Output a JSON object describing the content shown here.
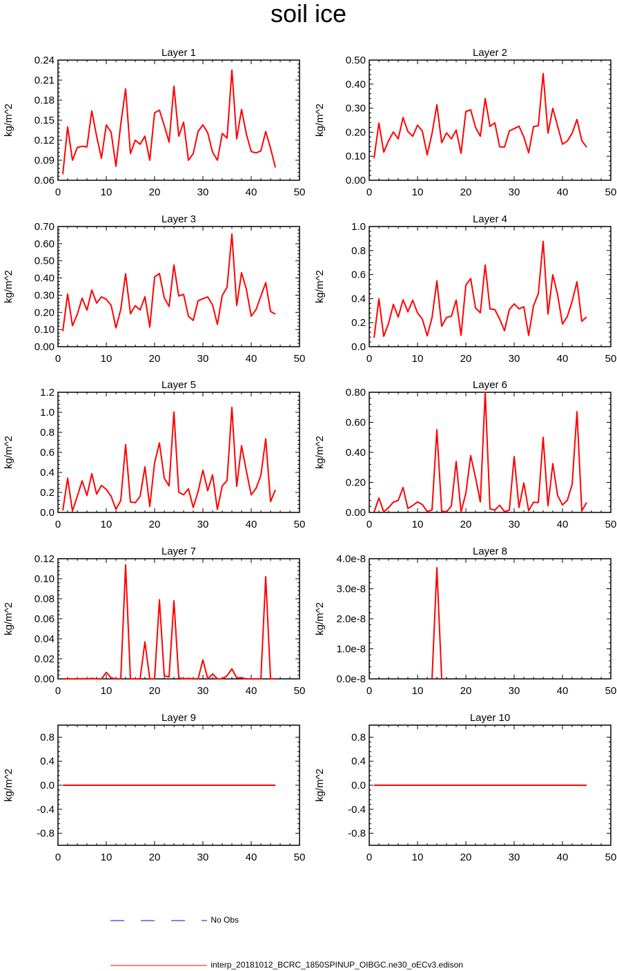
{
  "title": "soil ice",
  "chart_data": [
    {
      "type": "line",
      "title": "Layer 1",
      "ylabel": "kg/m^2",
      "xlim": [
        0,
        50
      ],
      "ylim": [
        0.06,
        0.24
      ],
      "xticks": [
        0,
        10,
        20,
        30,
        40,
        50
      ],
      "yticks": [
        0.06,
        0.09,
        0.12,
        0.15,
        0.18,
        0.21,
        0.24
      ],
      "ytick_labels": [
        "0.06",
        "0.09",
        "0.12",
        "0.15",
        "0.18",
        "0.21",
        "0.24"
      ],
      "x": [
        1,
        2,
        3,
        4,
        5,
        6,
        7,
        8,
        9,
        10,
        11,
        12,
        13,
        14,
        15,
        16,
        17,
        18,
        19,
        20,
        21,
        22,
        23,
        24,
        25,
        26,
        27,
        28,
        29,
        30,
        31,
        32,
        33,
        34,
        35,
        36,
        37,
        38,
        39,
        40,
        41,
        42,
        43,
        44,
        45
      ],
      "series": [
        {
          "name": "interp_20181012_BCRC_1850SPINUP_OIBGC.ne30_oECv3.edison",
          "color": "#ff0000",
          "values": [
            0.069,
            0.14,
            0.09,
            0.109,
            0.111,
            0.11,
            0.164,
            0.126,
            0.093,
            0.143,
            0.132,
            0.081,
            0.144,
            0.197,
            0.1,
            0.12,
            0.114,
            0.126,
            0.09,
            0.161,
            0.165,
            0.142,
            0.117,
            0.201,
            0.126,
            0.147,
            0.09,
            0.1,
            0.133,
            0.143,
            0.131,
            0.102,
            0.09,
            0.13,
            0.123,
            0.225,
            0.122,
            0.166,
            0.129,
            0.103,
            0.101,
            0.104,
            0.133,
            0.108,
            0.079
          ]
        }
      ]
    },
    {
      "type": "line",
      "title": "Layer 2",
      "ylabel": "kg/m^2",
      "xlim": [
        0,
        50
      ],
      "ylim": [
        0,
        0.5
      ],
      "xticks": [
        0,
        10,
        20,
        30,
        40,
        50
      ],
      "yticks": [
        0,
        0.1,
        0.2,
        0.3,
        0.4,
        0.5
      ],
      "ytick_labels": [
        "0.00",
        "0.10",
        "0.20",
        "0.30",
        "0.40",
        "0.50"
      ],
      "x": [
        1,
        2,
        3,
        4,
        5,
        6,
        7,
        8,
        9,
        10,
        11,
        12,
        13,
        14,
        15,
        16,
        17,
        18,
        19,
        20,
        21,
        22,
        23,
        24,
        25,
        26,
        27,
        28,
        29,
        30,
        31,
        32,
        33,
        34,
        35,
        36,
        37,
        38,
        39,
        40,
        41,
        42,
        43,
        44,
        45
      ],
      "series": [
        {
          "name": "interp_20181012_BCRC_1850SPINUP_OIBGC.ne30_oECv3.edison",
          "color": "#ff0000",
          "values": [
            0.092,
            0.238,
            0.117,
            0.164,
            0.201,
            0.172,
            0.261,
            0.203,
            0.183,
            0.229,
            0.204,
            0.106,
            0.195,
            0.314,
            0.156,
            0.197,
            0.172,
            0.209,
            0.112,
            0.286,
            0.293,
            0.22,
            0.183,
            0.34,
            0.224,
            0.239,
            0.139,
            0.138,
            0.205,
            0.215,
            0.225,
            0.18,
            0.114,
            0.223,
            0.227,
            0.444,
            0.196,
            0.299,
            0.225,
            0.15,
            0.163,
            0.196,
            0.253,
            0.165,
            0.137
          ]
        }
      ]
    },
    {
      "type": "line",
      "title": "Layer 3",
      "ylabel": "kg/m^2",
      "xlim": [
        0,
        50
      ],
      "ylim": [
        0,
        0.7
      ],
      "xticks": [
        0,
        10,
        20,
        30,
        40,
        50
      ],
      "yticks": [
        0,
        0.1,
        0.2,
        0.3,
        0.4,
        0.5,
        0.6,
        0.7
      ],
      "ytick_labels": [
        "0.00",
        "0.10",
        "0.20",
        "0.30",
        "0.40",
        "0.50",
        "0.60",
        "0.70"
      ],
      "x": [
        1,
        2,
        3,
        4,
        5,
        6,
        7,
        8,
        9,
        10,
        11,
        12,
        13,
        14,
        15,
        16,
        17,
        18,
        19,
        20,
        21,
        22,
        23,
        24,
        25,
        26,
        27,
        28,
        29,
        30,
        31,
        32,
        33,
        34,
        35,
        36,
        37,
        38,
        39,
        40,
        41,
        42,
        43,
        44,
        45
      ],
      "series": [
        {
          "name": "interp_20181012_BCRC_1850SPINUP_OIBGC.ne30_oECv3.edison",
          "color": "#ff0000",
          "values": [
            0.09,
            0.307,
            0.122,
            0.189,
            0.283,
            0.213,
            0.33,
            0.254,
            0.29,
            0.276,
            0.241,
            0.11,
            0.217,
            0.425,
            0.192,
            0.239,
            0.214,
            0.291,
            0.114,
            0.406,
            0.426,
            0.285,
            0.234,
            0.476,
            0.295,
            0.305,
            0.178,
            0.153,
            0.268,
            0.28,
            0.29,
            0.243,
            0.13,
            0.298,
            0.345,
            0.656,
            0.24,
            0.431,
            0.334,
            0.178,
            0.216,
            0.295,
            0.373,
            0.205,
            0.19
          ]
        }
      ]
    },
    {
      "type": "line",
      "title": "Layer 4",
      "ylabel": "kg/m^2",
      "xlim": [
        0,
        50
      ],
      "ylim": [
        0,
        1.0
      ],
      "xticks": [
        0,
        10,
        20,
        30,
        40,
        50
      ],
      "yticks": [
        0,
        0.2,
        0.4,
        0.6,
        0.8,
        1.0
      ],
      "ytick_labels": [
        "0.0",
        "0.2",
        "0.4",
        "0.6",
        "0.8",
        "1.0"
      ],
      "x": [
        1,
        2,
        3,
        4,
        5,
        6,
        7,
        8,
        9,
        10,
        11,
        12,
        13,
        14,
        15,
        16,
        17,
        18,
        19,
        20,
        21,
        22,
        23,
        24,
        25,
        26,
        27,
        28,
        29,
        30,
        31,
        32,
        33,
        34,
        35,
        36,
        37,
        38,
        39,
        40,
        41,
        42,
        43,
        44,
        45
      ],
      "series": [
        {
          "name": "interp_20181012_BCRC_1850SPINUP_OIBGC.ne30_oECv3.edison",
          "color": "#ff0000",
          "values": [
            0.074,
            0.399,
            0.086,
            0.194,
            0.352,
            0.246,
            0.39,
            0.29,
            0.387,
            0.281,
            0.229,
            0.09,
            0.242,
            0.547,
            0.17,
            0.243,
            0.254,
            0.388,
            0.094,
            0.512,
            0.567,
            0.322,
            0.282,
            0.68,
            0.314,
            0.309,
            0.23,
            0.133,
            0.309,
            0.356,
            0.315,
            0.332,
            0.094,
            0.34,
            0.441,
            0.877,
            0.272,
            0.598,
            0.431,
            0.188,
            0.25,
            0.378,
            0.54,
            0.211,
            0.248
          ]
        }
      ]
    },
    {
      "type": "line",
      "title": "Layer 5",
      "ylabel": "kg/m^2",
      "xlim": [
        0,
        50
      ],
      "ylim": [
        0,
        1.2
      ],
      "xticks": [
        0,
        10,
        20,
        30,
        40,
        50
      ],
      "yticks": [
        0,
        0.2,
        0.4,
        0.6,
        0.8,
        1.0,
        1.2
      ],
      "ytick_labels": [
        "0.0",
        "0.2",
        "0.4",
        "0.6",
        "0.8",
        "1.0",
        "1.2"
      ],
      "x": [
        1,
        2,
        3,
        4,
        5,
        6,
        7,
        8,
        9,
        10,
        11,
        12,
        13,
        14,
        15,
        16,
        17,
        18,
        19,
        20,
        21,
        22,
        23,
        24,
        25,
        26,
        27,
        28,
        29,
        30,
        31,
        32,
        33,
        34,
        35,
        36,
        37,
        38,
        39,
        40,
        41,
        42,
        43,
        44,
        45
      ],
      "series": [
        {
          "name": "interp_20181012_BCRC_1850SPINUP_OIBGC.ne30_oECv3.edison",
          "color": "#ff0000",
          "values": [
            0.019,
            0.342,
            0.014,
            0.161,
            0.316,
            0.169,
            0.386,
            0.183,
            0.27,
            0.23,
            0.162,
            0.03,
            0.119,
            0.677,
            0.104,
            0.097,
            0.161,
            0.456,
            0.059,
            0.495,
            0.694,
            0.342,
            0.265,
            1.003,
            0.203,
            0.176,
            0.237,
            0.05,
            0.208,
            0.422,
            0.217,
            0.375,
            0.029,
            0.265,
            0.318,
            1.049,
            0.26,
            0.666,
            0.413,
            0.175,
            0.241,
            0.371,
            0.735,
            0.108,
            0.225
          ]
        }
      ]
    },
    {
      "type": "line",
      "title": "Layer 6",
      "ylabel": "kg/m^2",
      "xlim": [
        0,
        50
      ],
      "ylim": [
        0,
        0.8
      ],
      "xticks": [
        0,
        10,
        20,
        30,
        40,
        50
      ],
      "yticks": [
        0,
        0.2,
        0.4,
        0.6,
        0.8
      ],
      "ytick_labels": [
        "0.00",
        "0.20",
        "0.40",
        "0.60",
        "0.80"
      ],
      "x": [
        1,
        2,
        3,
        4,
        5,
        6,
        7,
        8,
        9,
        10,
        11,
        12,
        13,
        14,
        15,
        16,
        17,
        18,
        19,
        20,
        21,
        22,
        23,
        24,
        25,
        26,
        27,
        28,
        29,
        30,
        31,
        32,
        33,
        34,
        35,
        36,
        37,
        38,
        39,
        40,
        41,
        42,
        43,
        44,
        45
      ],
      "series": [
        {
          "name": "interp_20181012_BCRC_1850SPINUP_OIBGC.ne30_oECv3.edison",
          "color": "#ff0000",
          "values": [
            0.002,
            0.096,
            0.004,
            0.032,
            0.069,
            0.08,
            0.166,
            0.026,
            0.046,
            0.07,
            0.052,
            0.006,
            0.016,
            0.55,
            0.008,
            0.004,
            0.043,
            0.339,
            0.003,
            0.127,
            0.378,
            0.233,
            0.07,
            0.8,
            0.024,
            0.016,
            0.048,
            0.005,
            0.015,
            0.372,
            0.033,
            0.196,
            0.012,
            0.068,
            0.066,
            0.5,
            0.044,
            0.325,
            0.112,
            0.05,
            0.081,
            0.186,
            0.67,
            0.01,
            0.066
          ]
        }
      ]
    },
    {
      "type": "line",
      "title": "Layer 7",
      "ylabel": "kg/m^2",
      "xlim": [
        0,
        50
      ],
      "ylim": [
        0,
        0.12
      ],
      "xticks": [
        0,
        10,
        20,
        30,
        40,
        50
      ],
      "yticks": [
        0,
        0.02,
        0.04,
        0.06,
        0.08,
        0.1,
        0.12
      ],
      "ytick_labels": [
        "0.00",
        "0.02",
        "0.04",
        "0.06",
        "0.08",
        "0.10",
        "0.12"
      ],
      "x": [
        1,
        2,
        3,
        4,
        5,
        6,
        7,
        8,
        9,
        10,
        11,
        12,
        13,
        14,
        15,
        16,
        17,
        18,
        19,
        20,
        21,
        22,
        23,
        24,
        25,
        26,
        27,
        28,
        29,
        30,
        31,
        32,
        33,
        34,
        35,
        36,
        37,
        38,
        39,
        40,
        41,
        42,
        43,
        44,
        45
      ],
      "series": [
        {
          "name": "interp_20181012_BCRC_1850SPINUP_OIBGC.ne30_oECv3.edison",
          "color": "#ff0000",
          "values": [
            0.0,
            0.0,
            0.0,
            0.0,
            0.0003,
            0.0,
            0.0005,
            0.0,
            0.0,
            0.0065,
            0.001,
            0.0,
            0.0,
            0.114,
            0.0,
            0.0,
            0.0,
            0.037,
            0.0,
            0.0,
            0.079,
            0.003,
            0.002,
            0.078,
            0.001,
            0.0,
            0.0005,
            0.0,
            0.0,
            0.019,
            0.0,
            0.005,
            0.0,
            0.0,
            0.003,
            0.01,
            0.001,
            0.001,
            0.0,
            0.0,
            0.0,
            0.0,
            0.102,
            0.0,
            0.0
          ]
        }
      ]
    },
    {
      "type": "line",
      "title": "Layer 8",
      "ylabel": "kg/m^2",
      "xlim": [
        0,
        50
      ],
      "ylim": [
        0,
        4e-08
      ],
      "xticks": [
        0,
        10,
        20,
        30,
        40,
        50
      ],
      "yticks": [
        0,
        1e-08,
        2e-08,
        3e-08,
        4e-08
      ],
      "ytick_labels": [
        "0.0e-8",
        "1.0e-8",
        "2.0e-8",
        "3.0e-8",
        "4.0e-8"
      ],
      "x": [
        13,
        14,
        15
      ],
      "series": [
        {
          "name": "interp_20181012_BCRC_1850SPINUP_OIBGC.ne30_oECv3.edison",
          "color": "#ff0000",
          "values": [
            0,
            3.7e-08,
            0
          ]
        }
      ]
    },
    {
      "type": "line",
      "title": "Layer 9",
      "ylabel": "kg/m^2",
      "xlim": [
        0,
        50
      ],
      "ylim": [
        -1.0,
        1.0
      ],
      "xticks": [
        0,
        10,
        20,
        30,
        40,
        50
      ],
      "yticks": [
        -0.8,
        -0.4,
        0.0,
        0.4,
        0.8
      ],
      "ytick_labels": [
        "-0.8",
        "-0.4",
        "0.0",
        "0.4",
        "0.8"
      ],
      "x": [
        1,
        45
      ],
      "series": [
        {
          "name": "interp_20181012_BCRC_1850SPINUP_OIBGC.ne30_oECv3.edison",
          "color": "#ff0000",
          "values": [
            0,
            0
          ]
        }
      ]
    },
    {
      "type": "line",
      "title": "Layer 10",
      "ylabel": "kg/m^2",
      "xlim": [
        0,
        50
      ],
      "ylim": [
        -1.0,
        1.0
      ],
      "xticks": [
        0,
        10,
        20,
        30,
        40,
        50
      ],
      "yticks": [
        -0.8,
        -0.4,
        0.0,
        0.4,
        0.8
      ],
      "ytick_labels": [
        "-0.8",
        "-0.4",
        "0.0",
        "0.4",
        "0.8"
      ],
      "x": [
        1,
        45
      ],
      "series": [
        {
          "name": "interp_20181012_BCRC_1850SPINUP_OIBGC.ne30_oECv3.edison",
          "color": "#ff0000",
          "values": [
            0,
            0
          ]
        }
      ]
    }
  ],
  "legend": {
    "items": [
      {
        "label": "No Obs",
        "color": "#0000ff",
        "style": "dashed"
      },
      {
        "label": "interp_20181012_BCRC_1850SPINUP_OIBGC.ne30_oECv3.edison",
        "color": "#ff0000",
        "style": "solid"
      }
    ]
  }
}
